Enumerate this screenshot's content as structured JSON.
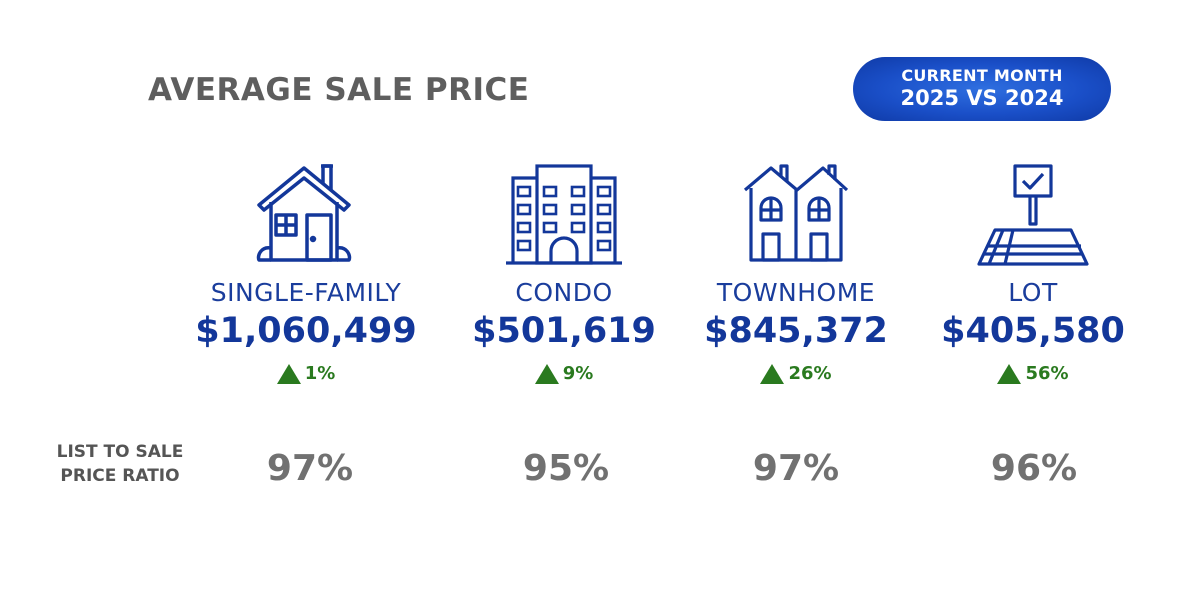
{
  "title": "AVERAGE SALE PRICE",
  "badge": {
    "line1": "CURRENT MONTH",
    "line2": "2025 VS 2024"
  },
  "ratio_label": {
    "line1": "LIST TO SALE",
    "line2": "PRICE RATIO"
  },
  "colors": {
    "primary": "#13379a",
    "positive": "#2a7a1f",
    "muted": "#717171"
  },
  "categories": [
    {
      "icon": "house-icon",
      "label": "SINGLE-FAMILY",
      "price": "$1,060,499",
      "change": "1%",
      "direction": "up",
      "ratio": "97%"
    },
    {
      "icon": "building-icon",
      "label": "CONDO",
      "price": "$501,619",
      "change": "9%",
      "direction": "up",
      "ratio": "95%"
    },
    {
      "icon": "townhome-icon",
      "label": "TOWNHOME",
      "price": "$845,372",
      "change": "26%",
      "direction": "up",
      "ratio": "97%"
    },
    {
      "icon": "lot-icon",
      "label": "LOT",
      "price": "$405,580",
      "change": "56%",
      "direction": "up",
      "ratio": "96%"
    }
  ]
}
